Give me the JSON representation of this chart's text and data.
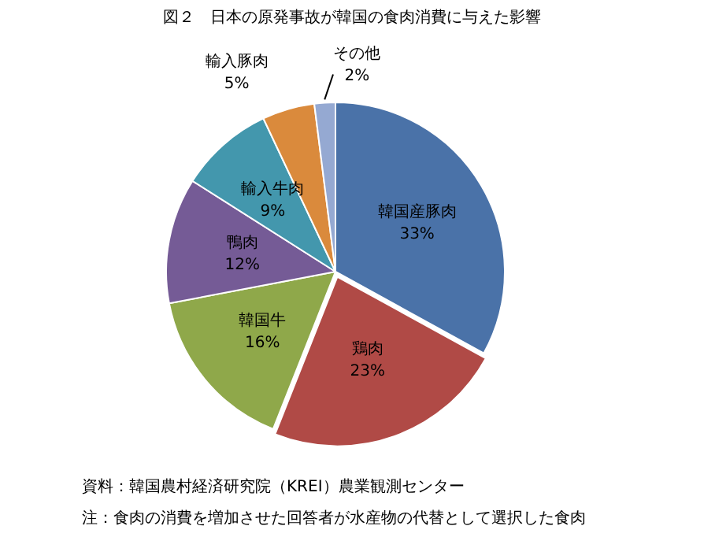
{
  "chart_data": {
    "type": "pie",
    "title": "図２　日本の原発事故が韓国の食肉消費に与えた影響",
    "categories": [
      "韓国産豚肉",
      "鶏肉",
      "韓国牛",
      "鴨肉",
      "輸入牛肉",
      "輸入豚肉",
      "その他"
    ],
    "values": [
      33,
      23,
      16,
      12,
      9,
      5,
      2
    ],
    "value_labels": [
      "33%",
      "23%",
      "16%",
      "12%",
      "9%",
      "5%",
      "2%"
    ],
    "colors": [
      "#4a72a8",
      "#b04a46",
      "#8fa84a",
      "#755b96",
      "#4397ad",
      "#da8a3c",
      "#95a9d2"
    ],
    "legend": false,
    "annotations": [
      "資料：韓国農村経済研究院（KREI）農業観測センター",
      "注：食肉の消費を増加させた回答者が水産物の代替として選択した食肉"
    ]
  }
}
